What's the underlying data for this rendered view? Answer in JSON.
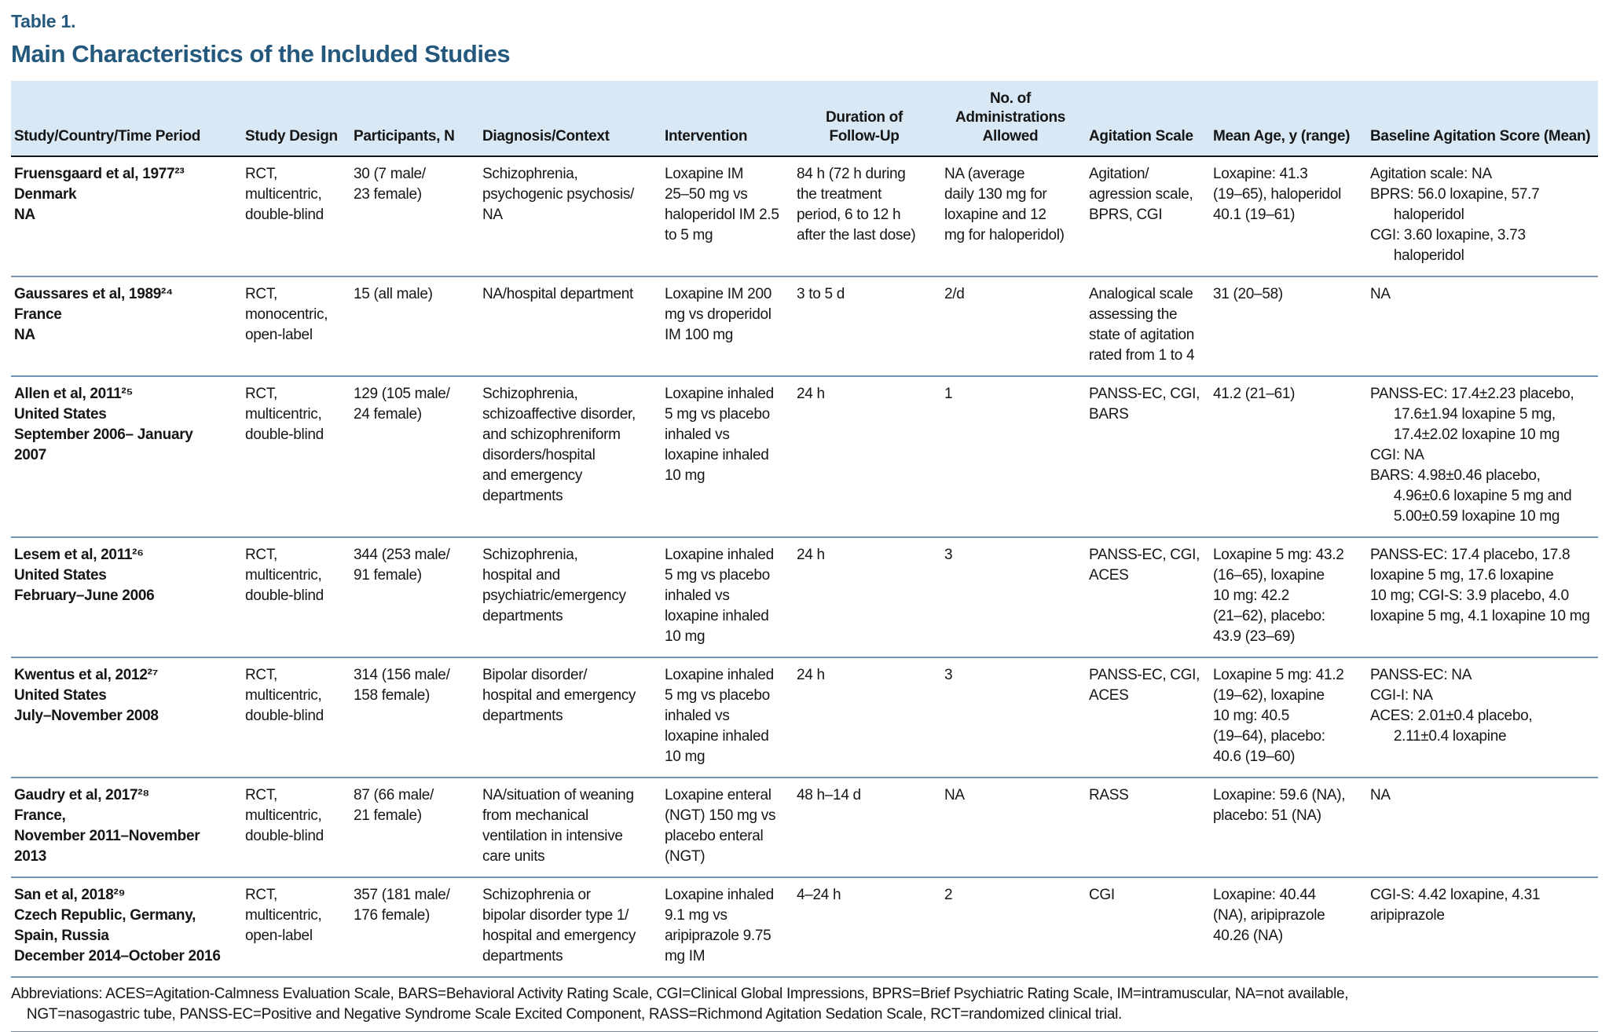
{
  "table_label": "Table 1.",
  "table_title": "Main Characteristics of the Included Studies",
  "headers": {
    "study": "Study/Country/Time Period",
    "design": "Study Design",
    "participants": "Participants, N",
    "diagnosis": "Diagnosis/Context",
    "intervention": "Intervention",
    "duration": "Duration of\nFollow-Up",
    "administrations": "No. of\nAdministrations\nAllowed",
    "scale": "Agitation Scale",
    "age": "Mean Age, y (range)",
    "baseline": "Baseline Agitation Score (Mean)"
  },
  "rows": [
    {
      "study": "Fruensgaard et al, 1977²³\nDenmark\nNA",
      "design": "RCT,\nmulticentric,\ndouble-blind",
      "participants": "30 (7 male/\n23 female)",
      "diagnosis": "Schizophrenia,\npsychogenic psychosis/\nNA",
      "intervention": "Loxapine IM\n25–50 mg vs\nhaloperidol IM 2.5\nto 5 mg",
      "duration": "84 h (72 h during\nthe treatment\nperiod, 6 to 12 h\nafter the last dose)",
      "administrations": "NA (average\ndaily 130 mg for\nloxapine and 12\nmg for haloperidol)",
      "scale": "Agitation/\nagression scale,\nBPRS, CGI",
      "age": "Loxapine: 41.3\n(19–65), haloperidol\n40.1 (19–61)",
      "baseline": "Agitation scale: NA\nBPRS: 56.0 loxapine, 57.7\n      haloperidol\nCGI: 3.60 loxapine, 3.73\n      haloperidol"
    },
    {
      "study": "Gaussares et al, 1989²⁴\nFrance\nNA",
      "design": "RCT,\nmonocentric,\nopen-label",
      "participants": "15 (all male)",
      "diagnosis": "NA/hospital department",
      "intervention": "Loxapine IM 200\nmg vs droperidol\nIM 100 mg",
      "duration": "3 to 5 d",
      "administrations": "2/d",
      "scale": "Analogical scale\nassessing the\nstate of agitation\nrated from 1 to 4",
      "age": "31 (20–58)",
      "baseline": "NA"
    },
    {
      "study": "Allen et al, 2011²⁵\nUnited States\nSeptember 2006– January\n2007",
      "design": "RCT,\nmulticentric,\ndouble-blind",
      "participants": "129 (105 male/\n24 female)",
      "diagnosis": "Schizophrenia,\nschizoaffective disorder,\nand schizophreniform\ndisorders/hospital\nand emergency\ndepartments",
      "intervention": "Loxapine inhaled\n5 mg vs placebo\ninhaled vs\nloxapine inhaled\n10 mg",
      "duration": "24 h",
      "administrations": "1",
      "scale": "PANSS-EC, CGI,\nBARS",
      "age": "41.2 (21–61)",
      "baseline": "PANSS-EC: 17.4±2.23 placebo,\n      17.6±1.94 loxapine 5 mg,\n      17.4±2.02 loxapine 10 mg\nCGI: NA\nBARS: 4.98±0.46 placebo,\n      4.96±0.6 loxapine 5 mg and\n      5.00±0.59 loxapine 10 mg"
    },
    {
      "study": "Lesem et al, 2011²⁶\nUnited States\nFebruary–June 2006",
      "design": "RCT,\nmulticentric,\ndouble-blind",
      "participants": "344 (253 male/\n91 female)",
      "diagnosis": "Schizophrenia,\nhospital and\npsychiatric/emergency\ndepartments",
      "intervention": "Loxapine inhaled\n5 mg vs placebo\ninhaled vs\nloxapine inhaled\n10 mg",
      "duration": "24 h",
      "administrations": "3",
      "scale": "PANSS-EC, CGI,\nACES",
      "age": "Loxapine 5 mg: 43.2\n(16–65), loxapine\n10 mg: 42.2\n(21–62), placebo:\n43.9 (23–69)",
      "baseline": "PANSS-EC: 17.4 placebo, 17.8\nloxapine 5 mg, 17.6 loxapine\n10 mg; CGI-S: 3.9 placebo, 4.0\nloxapine 5 mg, 4.1 loxapine 10 mg"
    },
    {
      "study": "Kwentus et al, 2012²⁷\nUnited States\nJuly–November 2008",
      "design": "RCT,\nmulticentric,\ndouble-blind",
      "participants": "314 (156 male/\n158 female)",
      "diagnosis": "Bipolar disorder/\nhospital and emergency\ndepartments",
      "intervention": "Loxapine inhaled\n5 mg vs placebo\ninhaled vs\nloxapine inhaled\n10 mg",
      "duration": "24 h",
      "administrations": "3",
      "scale": "PANSS-EC, CGI,\nACES",
      "age": "Loxapine 5 mg: 41.2\n(19–62), loxapine\n10 mg: 40.5\n(19–64), placebo:\n40.6 (19–60)",
      "baseline": "PANSS-EC: NA\nCGI-I: NA\nACES: 2.01±0.4 placebo,\n      2.11±0.4 loxapine"
    },
    {
      "study": "Gaudry et al, 2017²⁸\nFrance,\nNovember 2011–November\n2013",
      "design": "RCT,\nmulticentric,\ndouble-blind",
      "participants": "87 (66 male/\n21 female)",
      "diagnosis": "NA/situation of weaning\nfrom mechanical\nventilation in intensive\ncare units",
      "intervention": "Loxapine enteral\n(NGT) 150 mg vs\nplacebo enteral\n(NGT)",
      "duration": "48 h–14 d",
      "administrations": "NA",
      "scale": "RASS",
      "age": "Loxapine: 59.6 (NA),\nplacebo: 51 (NA)",
      "baseline": "NA"
    },
    {
      "study": "San et al, 2018²⁹\nCzech Republic, Germany,\nSpain, Russia\nDecember 2014–October 2016",
      "design": "RCT,\nmulticentric,\nopen-label",
      "participants": "357 (181 male/\n176 female)",
      "diagnosis": "Schizophrenia or\nbipolar disorder type 1/\nhospital and emergency\ndepartments",
      "intervention": "Loxapine inhaled\n9.1 mg vs\naripiprazole 9.75\nmg IM",
      "duration": "4–24 h",
      "administrations": "2",
      "scale": "CGI",
      "age": "Loxapine: 40.44\n(NA), aripiprazole\n40.26 (NA)",
      "baseline": "CGI-S: 4.42 loxapine, 4.31\naripiprazole"
    }
  ],
  "footnote": "Abbreviations: ACES=Agitation-Calmness Evaluation Scale, BARS=Behavioral Activity Rating Scale, CGI=Clinical Global Impressions, BPRS=Brief Psychiatric Rating Scale, IM=intramuscular, NA=not available,\n    NGT=nasogastric tube, PANSS-EC=Positive and Negative Syndrome Scale Excited Component, RASS=Richmond Agitation Sedation Scale, RCT=randomized clinical trial.",
  "colors": {
    "title_blue": "#24587d",
    "header_bg": "#d9e8f5",
    "row_rule": "#6f94b4",
    "bottom_rule": "#75889b"
  }
}
